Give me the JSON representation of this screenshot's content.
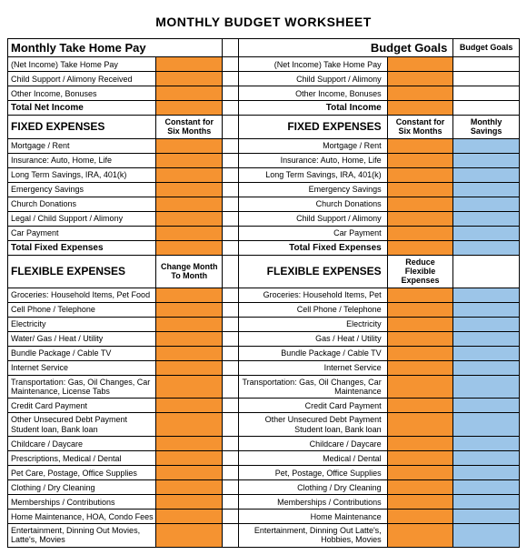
{
  "title": "MONTHLY BUDGET WORKSHEET",
  "colors": {
    "orange": "#f59331",
    "blue": "#9cc5e8",
    "border": "#000000",
    "bg": "#ffffff"
  },
  "colwidths_pct": [
    27,
    12,
    3,
    27,
    12,
    12
  ],
  "headers": {
    "left": "Monthly Take Home Pay",
    "right": "Budget Goals",
    "budget_goals_sub": "Budget Goals",
    "constant_six": "Constant for Six Months",
    "monthly_savings": "Monthly Savings",
    "change_month": "Change Month To Month",
    "reduce_flex": "Reduce Flexible Expenses",
    "fixed": "FIXED EXPENSES",
    "flex": "FLEXIBLE EXPENSES",
    "total_net": "Total Net Income",
    "total_income": "Total Income",
    "total_fixed": "Total Fixed Expenses"
  },
  "income": [
    {
      "l": "(Net Income) Take Home Pay",
      "r": "(Net Income) Take Home Pay"
    },
    {
      "l": "Child Support / Alimony Received",
      "r": "Child Support / Alimony"
    },
    {
      "l": "Other Income, Bonuses",
      "r": "Other Income, Bonuses"
    }
  ],
  "fixed": [
    {
      "l": "Mortgage / Rent",
      "r": "Mortgage / Rent"
    },
    {
      "l": "Insurance:  Auto, Home, Life",
      "r": "Insurance:  Auto, Home, Life"
    },
    {
      "l": "Long Term Savings, IRA, 401(k)",
      "r": "Long Term Savings, IRA, 401(k)"
    },
    {
      "l": "Emergency Savings",
      "r": "Emergency Savings"
    },
    {
      "l": "Church Donations",
      "r": "Church Donations"
    },
    {
      "l": "Legal / Child Support / Alimony",
      "r": "Child Support / Alimony"
    },
    {
      "l": "Car Payment",
      "r": "Car Payment"
    }
  ],
  "flex": [
    {
      "l": "Groceries: Household Items, Pet Food",
      "r": "Groceries: Household Items, Pet"
    },
    {
      "l": "Cell Phone / Telephone",
      "r": "Cell Phone / Telephone"
    },
    {
      "l": "Electricity",
      "r": "Electricity"
    },
    {
      "l": "Water/ Gas / Heat / Utility",
      "r": "Gas / Heat / Utility"
    },
    {
      "l": "Bundle Package / Cable TV",
      "r": "Bundle Package / Cable TV"
    },
    {
      "l": "Internet Service",
      "r": "Internet Service"
    },
    {
      "l": "Transportation: Gas, Oil Changes, Car Maintenance, License Tabs",
      "r": "Transportation: Gas, Oil Changes, Car Maintenance",
      "wrap": true
    },
    {
      "l": "Credit Card Payment",
      "r": "Credit Card Payment"
    },
    {
      "l": "Other Unsecured Debt Payment Student loan, Bank loan",
      "r": "Other Unsecured Debt Payment Student loan, Bank loan",
      "wrap": true
    },
    {
      "l": "Childcare / Daycare",
      "r": "Childcare / Daycare"
    },
    {
      "l": "Prescriptions, Medical / Dental",
      "r": "Medical / Dental"
    },
    {
      "l": "Pet Care, Postage, Office Supplies",
      "r": "Pet, Postage, Office Supplies"
    },
    {
      "l": "Clothing / Dry Cleaning",
      "r": "Clothing / Dry Cleaning"
    },
    {
      "l": "Memberships / Contributions",
      "r": "Memberships / Contributions"
    },
    {
      "l": "Home Maintenance, HOA, Condo Fees",
      "r": "Home Maintenance"
    },
    {
      "l": "Entertainment, Dinning Out Movies, Latte's, Movies",
      "r": "Entertainment, Dinning Out Latte's, Hobbies, Movies",
      "wrap": true
    }
  ]
}
